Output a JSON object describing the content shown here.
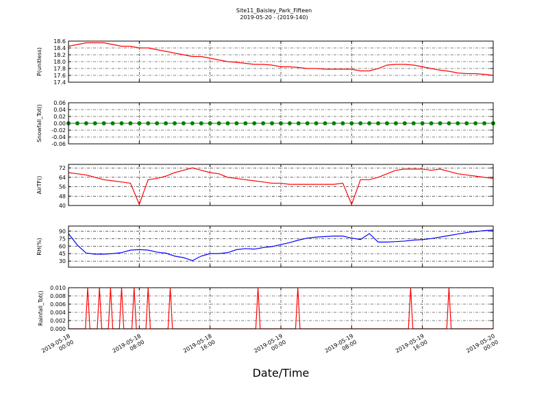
{
  "chart_data": [
    {
      "type": "line",
      "title": "Site11_Baisley_Park_Fifteen",
      "subtitle": "2019-05-20 - (2019-140)",
      "ylabel": "P(unitless)",
      "color": "#ff0000",
      "grid": true,
      "xlim": [
        "2019-05-18 00:00",
        "2019-05-20 00:00"
      ],
      "x": [
        "2019-05-18 00:00",
        "2019-05-18 01:00",
        "2019-05-18 02:00",
        "2019-05-18 03:00",
        "2019-05-18 04:00",
        "2019-05-18 05:00",
        "2019-05-18 06:00",
        "2019-05-18 07:00",
        "2019-05-18 08:00",
        "2019-05-18 09:00",
        "2019-05-18 10:00",
        "2019-05-18 11:00",
        "2019-05-18 12:00",
        "2019-05-18 13:00",
        "2019-05-18 14:00",
        "2019-05-18 15:00",
        "2019-05-18 16:00",
        "2019-05-18 17:00",
        "2019-05-18 18:00",
        "2019-05-18 19:00",
        "2019-05-18 20:00",
        "2019-05-18 21:00",
        "2019-05-18 22:00",
        "2019-05-18 23:00",
        "2019-05-19 00:00",
        "2019-05-19 01:00",
        "2019-05-19 02:00",
        "2019-05-19 03:00",
        "2019-05-19 04:00",
        "2019-05-19 05:00",
        "2019-05-19 06:00",
        "2019-05-19 07:00",
        "2019-05-19 08:00",
        "2019-05-19 09:00",
        "2019-05-19 10:00",
        "2019-05-19 11:00",
        "2019-05-19 12:00",
        "2019-05-19 13:00",
        "2019-05-19 14:00",
        "2019-05-19 15:00",
        "2019-05-19 16:00",
        "2019-05-19 17:00",
        "2019-05-19 18:00",
        "2019-05-19 19:00",
        "2019-05-19 20:00",
        "2019-05-19 21:00",
        "2019-05-19 22:00",
        "2019-05-19 23:00",
        "2019-05-20 00:00"
      ],
      "values": [
        18.45,
        18.5,
        18.55,
        18.55,
        18.55,
        18.5,
        18.45,
        18.45,
        18.4,
        18.4,
        18.35,
        18.3,
        18.25,
        18.2,
        18.15,
        18.15,
        18.1,
        18.05,
        18.0,
        17.98,
        17.95,
        17.92,
        17.92,
        17.9,
        17.85,
        17.85,
        17.83,
        17.8,
        17.8,
        17.78,
        17.78,
        17.78,
        17.78,
        17.73,
        17.73,
        17.8,
        17.9,
        17.92,
        17.92,
        17.9,
        17.85,
        17.8,
        17.75,
        17.72,
        17.67,
        17.65,
        17.65,
        17.63,
        17.6
      ],
      "ylim": [
        17.4,
        18.6
      ],
      "yticks": [
        17.4,
        17.6,
        17.8,
        {
          "value": 18.0,
          "label": "18.0"
        },
        18.2,
        18.4,
        18.6
      ]
    },
    {
      "type": "line",
      "ylabel": "Snowfall_Tot()",
      "color": "#008000",
      "grid": true,
      "markers": true,
      "xlim": [
        "2019-05-18 00:00",
        "2019-05-20 00:00"
      ],
      "x": [
        "2019-05-18 00:00",
        "2019-05-18 01:00",
        "2019-05-18 02:00",
        "2019-05-18 03:00",
        "2019-05-18 04:00",
        "2019-05-18 05:00",
        "2019-05-18 06:00",
        "2019-05-18 07:00",
        "2019-05-18 08:00",
        "2019-05-18 09:00",
        "2019-05-18 10:00",
        "2019-05-18 11:00",
        "2019-05-18 12:00",
        "2019-05-18 13:00",
        "2019-05-18 14:00",
        "2019-05-18 15:00",
        "2019-05-18 16:00",
        "2019-05-18 17:00",
        "2019-05-18 18:00",
        "2019-05-18 19:00",
        "2019-05-18 20:00",
        "2019-05-18 21:00",
        "2019-05-18 22:00",
        "2019-05-18 23:00",
        "2019-05-19 00:00",
        "2019-05-19 01:00",
        "2019-05-19 02:00",
        "2019-05-19 03:00",
        "2019-05-19 04:00",
        "2019-05-19 05:00",
        "2019-05-19 06:00",
        "2019-05-19 07:00",
        "2019-05-19 08:00",
        "2019-05-19 09:00",
        "2019-05-19 10:00",
        "2019-05-19 11:00",
        "2019-05-19 12:00",
        "2019-05-19 13:00",
        "2019-05-19 14:00",
        "2019-05-19 15:00",
        "2019-05-19 16:00",
        "2019-05-19 17:00",
        "2019-05-19 18:00",
        "2019-05-19 19:00",
        "2019-05-19 20:00",
        "2019-05-19 21:00",
        "2019-05-19 22:00",
        "2019-05-19 23:00",
        "2019-05-20 00:00"
      ],
      "values": [
        0,
        0,
        0,
        0,
        0,
        0,
        0,
        0,
        0,
        0,
        0,
        0,
        0,
        0,
        0,
        0,
        0,
        0,
        0,
        0,
        0,
        0,
        0,
        0,
        0,
        0,
        0,
        0,
        0,
        0,
        0,
        0,
        0,
        0,
        0,
        0,
        0,
        0,
        0,
        0,
        0,
        0,
        0,
        0,
        0,
        0,
        0,
        0,
        0
      ],
      "ylim": [
        -0.06,
        0.06
      ],
      "yticks": [
        -0.06,
        -0.04,
        -0.02,
        {
          "value": 0,
          "label": "0.00"
        },
        0.02,
        0.04,
        0.06
      ]
    },
    {
      "type": "line",
      "ylabel": "AirTF()",
      "color": "#ff0000",
      "grid": true,
      "xlim": [
        "2019-05-18 00:00",
        "2019-05-20 00:00"
      ],
      "x": [
        "2019-05-18 00:00",
        "2019-05-18 01:00",
        "2019-05-18 02:00",
        "2019-05-18 03:00",
        "2019-05-18 04:00",
        "2019-05-18 05:00",
        "2019-05-18 06:00",
        "2019-05-18 07:00",
        "2019-05-18 08:00",
        "2019-05-18 09:00",
        "2019-05-18 10:00",
        "2019-05-18 11:00",
        "2019-05-18 12:00",
        "2019-05-18 13:00",
        "2019-05-18 14:00",
        "2019-05-18 15:00",
        "2019-05-18 16:00",
        "2019-05-18 17:00",
        "2019-05-18 18:00",
        "2019-05-18 19:00",
        "2019-05-18 20:00",
        "2019-05-18 21:00",
        "2019-05-18 22:00",
        "2019-05-18 23:00",
        "2019-05-19 00:00",
        "2019-05-19 01:00",
        "2019-05-19 02:00",
        "2019-05-19 03:00",
        "2019-05-19 04:00",
        "2019-05-19 05:00",
        "2019-05-19 06:00",
        "2019-05-19 07:00",
        "2019-05-19 08:00",
        "2019-05-19 09:00",
        "2019-05-19 10:00",
        "2019-05-19 11:00",
        "2019-05-19 12:00",
        "2019-05-19 13:00",
        "2019-05-19 14:00",
        "2019-05-19 15:00",
        "2019-05-19 16:00",
        "2019-05-19 17:00",
        "2019-05-19 18:00",
        "2019-05-19 19:00",
        "2019-05-19 20:00",
        "2019-05-19 21:00",
        "2019-05-19 22:00",
        "2019-05-19 23:00",
        "2019-05-20 00:00"
      ],
      "values": [
        68,
        67,
        66,
        64,
        62,
        61,
        60,
        59,
        41,
        62,
        63,
        65,
        68,
        70,
        72,
        70,
        68,
        67,
        64,
        63,
        62,
        61,
        60,
        59,
        59,
        58,
        58,
        58,
        58,
        58,
        58,
        59,
        41,
        62,
        62,
        64,
        67,
        70,
        71,
        71,
        71,
        70,
        71,
        69,
        67,
        66,
        65,
        64,
        63
      ],
      "ylim": [
        40,
        75
      ],
      "yticks": [
        40,
        48,
        56,
        64,
        72
      ]
    },
    {
      "type": "line",
      "ylabel": "RH(%)",
      "color": "#0000ff",
      "grid": true,
      "xlim": [
        "2019-05-18 00:00",
        "2019-05-20 00:00"
      ],
      "x": [
        "2019-05-18 00:00",
        "2019-05-18 01:00",
        "2019-05-18 02:00",
        "2019-05-18 03:00",
        "2019-05-18 04:00",
        "2019-05-18 05:00",
        "2019-05-18 06:00",
        "2019-05-18 07:00",
        "2019-05-18 08:00",
        "2019-05-18 09:00",
        "2019-05-18 10:00",
        "2019-05-18 11:00",
        "2019-05-18 12:00",
        "2019-05-18 13:00",
        "2019-05-18 14:00",
        "2019-05-18 15:00",
        "2019-05-18 16:00",
        "2019-05-18 17:00",
        "2019-05-18 18:00",
        "2019-05-18 19:00",
        "2019-05-18 20:00",
        "2019-05-18 21:00",
        "2019-05-18 22:00",
        "2019-05-18 23:00",
        "2019-05-19 00:00",
        "2019-05-19 01:00",
        "2019-05-19 02:00",
        "2019-05-19 03:00",
        "2019-05-19 04:00",
        "2019-05-19 05:00",
        "2019-05-19 06:00",
        "2019-05-19 07:00",
        "2019-05-19 08:00",
        "2019-05-19 09:00",
        "2019-05-19 10:00",
        "2019-05-19 11:00",
        "2019-05-19 12:00",
        "2019-05-19 13:00",
        "2019-05-19 14:00",
        "2019-05-19 15:00",
        "2019-05-19 16:00",
        "2019-05-19 17:00",
        "2019-05-19 18:00",
        "2019-05-19 19:00",
        "2019-05-19 20:00",
        "2019-05-19 21:00",
        "2019-05-19 22:00",
        "2019-05-19 23:00",
        "2019-05-20 00:00"
      ],
      "values": [
        85,
        62,
        46,
        44,
        44,
        45,
        47,
        52,
        53,
        52,
        48,
        46,
        40,
        37,
        31,
        40,
        45,
        45,
        47,
        53,
        55,
        54,
        57,
        59,
        63,
        67,
        72,
        76,
        78,
        79,
        80,
        80,
        76,
        73,
        85,
        68,
        68,
        69,
        70,
        72,
        73,
        75,
        78,
        81,
        84,
        87,
        89,
        91,
        92
      ],
      "ylim": [
        18,
        100
      ],
      "yticks": [
        30,
        45,
        60,
        75,
        90
      ]
    },
    {
      "type": "line",
      "ylabel": "Rainfall_Tot()",
      "xlabel": "Date/Time",
      "color": "#ff0000",
      "grid": true,
      "xlim": [
        "2019-05-18 00:00",
        "2019-05-20 00:00"
      ],
      "x": [
        "2019-05-18 00:00",
        "2019-05-18 01:55",
        "2019-05-18 02:10",
        "2019-05-18 02:25",
        "2019-05-18 03:15",
        "2019-05-18 03:30",
        "2019-05-18 03:45",
        "2019-05-18 04:30",
        "2019-05-18 04:45",
        "2019-05-18 05:00",
        "2019-05-18 05:45",
        "2019-05-18 06:00",
        "2019-05-18 06:15",
        "2019-05-18 07:10",
        "2019-05-18 07:25",
        "2019-05-18 07:40",
        "2019-05-18 08:45",
        "2019-05-18 09:00",
        "2019-05-18 09:15",
        "2019-05-18 11:15",
        "2019-05-18 11:30",
        "2019-05-18 11:45",
        "2019-05-18 21:10",
        "2019-05-18 21:25",
        "2019-05-18 21:40",
        "2019-05-19 01:40",
        "2019-05-19 01:55",
        "2019-05-19 02:10",
        "2019-05-19 14:25",
        "2019-05-19 14:40",
        "2019-05-19 14:55",
        "2019-05-19 18:45",
        "2019-05-19 19:00",
        "2019-05-19 19:15",
        "2019-05-20 00:00"
      ],
      "values": [
        0,
        0,
        0.01,
        0,
        0,
        0.01,
        0,
        0,
        0.01,
        0,
        0,
        0.01,
        0,
        0,
        0.01,
        0,
        0,
        0.01,
        0,
        0,
        0.01,
        0,
        0,
        0.01,
        0,
        0,
        0.01,
        0,
        0,
        0.01,
        0,
        0,
        0.01,
        0,
        0
      ],
      "ylim": [
        0,
        0.01
      ],
      "yticks": [
        {
          "value": 0,
          "label": "0.000"
        },
        0.002,
        0.004,
        0.006,
        0.008,
        {
          "value": 0.01,
          "label": "0.010"
        }
      ],
      "xticks": [
        "2019-05-18 00:00",
        "2019-05-18 08:00",
        "2019-05-18 16:00",
        "2019-05-19 00:00",
        "2019-05-19 08:00",
        "2019-05-19 16:00",
        "2019-05-20 00:00"
      ]
    }
  ]
}
